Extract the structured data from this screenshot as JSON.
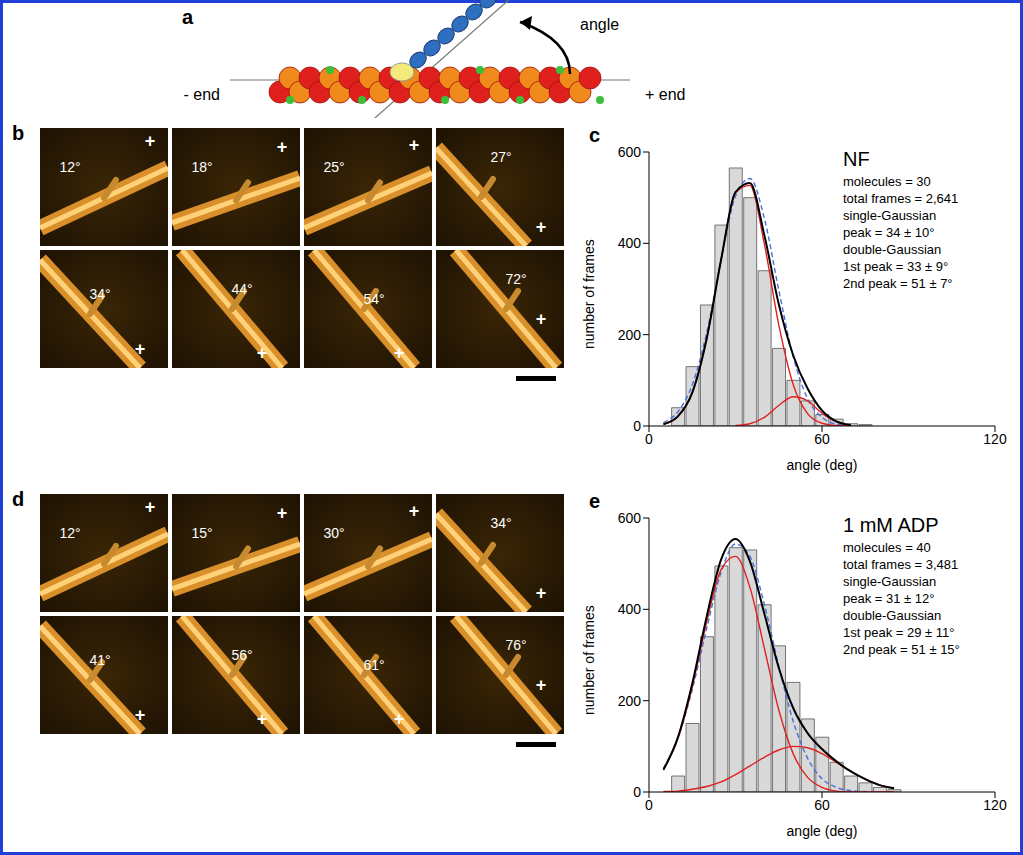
{
  "figure": {
    "a": {
      "label": "a",
      "texts": [
        "angle",
        "- end",
        "+ end"
      ]
    },
    "b": {
      "label": "b",
      "frames": [
        {
          "angle": "12°",
          "end": "+"
        },
        {
          "angle": "18°",
          "end": "+"
        },
        {
          "angle": "25°",
          "end": "+"
        },
        {
          "angle": "27°",
          "end": "+"
        },
        {
          "angle": "34°",
          "end": "+"
        },
        {
          "angle": "44°",
          "end": "+"
        },
        {
          "angle": "54°",
          "end": "+"
        },
        {
          "angle": "72°",
          "end": "+"
        }
      ]
    },
    "d": {
      "label": "d",
      "frames": [
        {
          "angle": "12°",
          "end": "+"
        },
        {
          "angle": "15°",
          "end": "+"
        },
        {
          "angle": "30°",
          "end": "+"
        },
        {
          "angle": "34°",
          "end": "+"
        },
        {
          "angle": "41°",
          "end": "+"
        },
        {
          "angle": "56°",
          "end": "+"
        },
        {
          "angle": "61°",
          "end": "+"
        },
        {
          "angle": "76°",
          "end": "+"
        }
      ]
    }
  },
  "chart_data": [
    {
      "label": "c",
      "type": "histogram",
      "title": "NF",
      "annotations": [
        "molecules = 30",
        "total frames = 2,641",
        "single-Gaussian",
        "peak = 34 ± 10°",
        "double-Gaussian",
        "1st peak = 33 ± 9°",
        "2nd peak = 51 ± 7°"
      ],
      "x_label": "angle (deg)",
      "y_label": "number of frames",
      "bins": [
        7.5,
        12.5,
        17.5,
        22.5,
        27.5,
        32.5,
        37.5,
        42.5,
        47.5,
        52.5,
        57.5,
        62.5,
        67.5,
        72.5,
        77.5
      ],
      "counts": [
        40,
        130,
        265,
        440,
        565,
        500,
        340,
        170,
        100,
        55,
        25,
        15,
        5,
        3
      ],
      "color": "#d9d9d9",
      "xlim": [
        0,
        120
      ],
      "xticks": [
        0,
        60,
        120
      ],
      "ylim": [
        0,
        600
      ],
      "yticks": [
        0,
        200,
        400,
        600
      ],
      "series": [
        {
          "type": "line",
          "color": "#4a6fd8",
          "line_style": "dashed",
          "x": [
            5,
            10,
            15,
            20,
            25,
            30,
            35,
            40,
            45,
            50,
            55,
            60,
            65,
            70
          ],
          "values": [
            8,
            31,
            90,
            204,
            364,
            503,
            542,
            455,
            298,
            152,
            60,
            19,
            4,
            1
          ]
        },
        {
          "type": "line",
          "color": "#e02020",
          "line_style": "solid",
          "x": [
            5,
            10,
            15,
            20,
            25,
            30,
            35,
            40,
            45,
            50,
            55,
            60,
            65,
            70
          ],
          "values": [
            4,
            21,
            73,
            191,
            364,
            511,
            527,
            399,
            222,
            91,
            27,
            6,
            1,
            0
          ]
        },
        {
          "type": "line",
          "color": "#e02020",
          "line_style": "solid",
          "x": [
            30,
            35,
            40,
            45,
            50,
            55,
            60,
            65,
            70
          ],
          "values": [
            1,
            5,
            19,
            45,
            64,
            55,
            28,
            9,
            2
          ]
        },
        {
          "type": "line",
          "color": "#000000",
          "line_style": "solid",
          "x": [
            5,
            10,
            15,
            20,
            25,
            30,
            35,
            40,
            45,
            50,
            55,
            60,
            65,
            70
          ],
          "values": [
            4,
            21,
            73,
            191,
            364,
            512,
            532,
            418,
            267,
            155,
            82,
            34,
            10,
            2
          ]
        }
      ]
    },
    {
      "label": "e",
      "type": "histogram",
      "title": "1 mM ADP",
      "annotations": [
        "molecules = 40",
        "total frames = 3,481",
        "single-Gaussian",
        "peak = 31 ± 12°",
        "double-Gaussian",
        "1st peak = 29 ± 11°",
        "2nd peak = 51 ± 15°"
      ],
      "x_label": "angle (deg)",
      "y_label": "number of frames",
      "bins": [
        7.5,
        12.5,
        17.5,
        22.5,
        27.5,
        32.5,
        37.5,
        42.5,
        47.5,
        52.5,
        57.5,
        62.5,
        67.5,
        72.5,
        77.5,
        82.5,
        87.5
      ],
      "counts": [
        35,
        150,
        340,
        495,
        535,
        530,
        410,
        320,
        240,
        160,
        120,
        65,
        35,
        20,
        10,
        5
      ],
      "color": "#d9d9d9",
      "xlim": [
        0,
        120
      ],
      "xticks": [
        0,
        60,
        120
      ],
      "ylim": [
        0,
        600
      ],
      "yticks": [
        0,
        200,
        400,
        600
      ],
      "series": [
        {
          "type": "line",
          "color": "#4a6fd8",
          "line_style": "dashed",
          "x": [
            5,
            10,
            15,
            20,
            25,
            30,
            35,
            40,
            45,
            50,
            55,
            60,
            65,
            70,
            75,
            80,
            85
          ],
          "values": [
            52,
            118,
            224,
            358,
            481,
            543,
            516,
            411,
            276,
            155,
            74,
            29,
            10,
            3,
            1,
            0,
            0
          ]
        },
        {
          "type": "line",
          "color": "#e02020",
          "line_style": "solid",
          "x": [
            5,
            10,
            15,
            20,
            25,
            30,
            35,
            40,
            45,
            50,
            55,
            60,
            65,
            70,
            75,
            80,
            85
          ],
          "values": [
            48,
            117,
            231,
            372,
            487,
            516,
            448,
            315,
            180,
            84,
            32,
            10,
            2,
            0,
            0,
            0,
            0
          ]
        },
        {
          "type": "line",
          "color": "#e02020",
          "line_style": "solid",
          "x": [
            5,
            10,
            15,
            20,
            25,
            30,
            35,
            40,
            45,
            50,
            55,
            60,
            65,
            70,
            75,
            80,
            85
          ],
          "values": [
            1,
            2,
            6,
            12,
            22,
            38,
            57,
            76,
            92,
            100,
            97,
            84,
            65,
            45,
            28,
            15,
            8
          ]
        },
        {
          "type": "line",
          "color": "#000000",
          "line_style": "solid",
          "x": [
            5,
            10,
            15,
            20,
            25,
            30,
            35,
            40,
            45,
            50,
            55,
            60,
            65,
            70,
            75,
            80,
            85
          ],
          "values": [
            49,
            119,
            237,
            384,
            509,
            554,
            505,
            391,
            272,
            184,
            129,
            94,
            67,
            45,
            28,
            15,
            8
          ]
        }
      ]
    }
  ]
}
